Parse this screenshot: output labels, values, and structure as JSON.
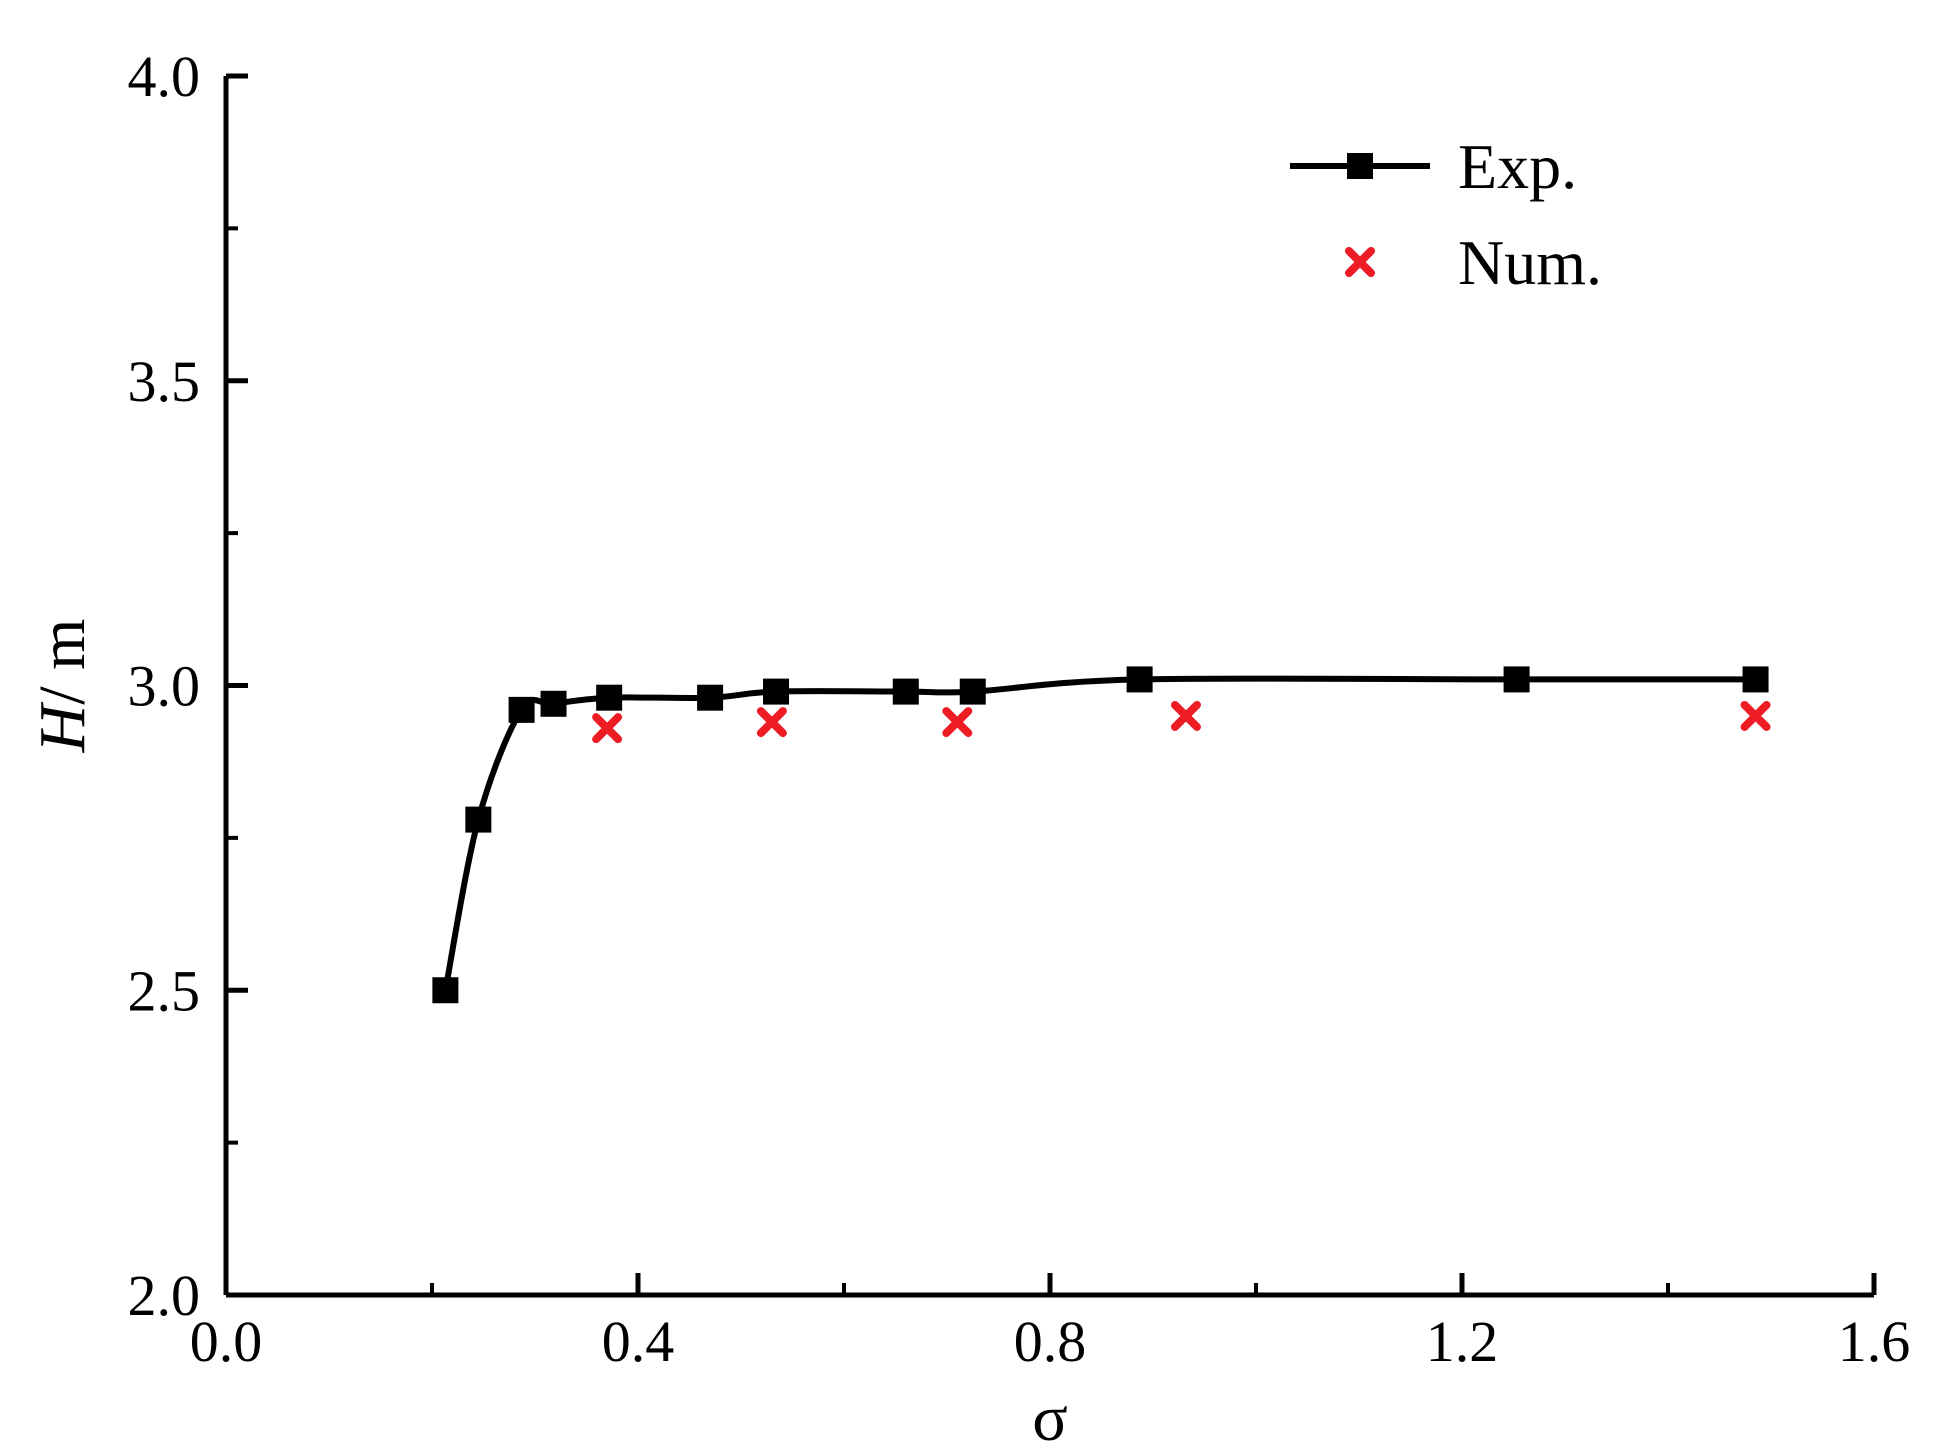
{
  "chart_data": {
    "type": "scatter",
    "title": "",
    "xlabel": "σ",
    "ylabel_italic": "H",
    "ylabel_unit": "/ m",
    "xlim": [
      0.0,
      1.6
    ],
    "ylim": [
      2.0,
      4.0
    ],
    "x_ticks": [
      0.0,
      0.4,
      0.8,
      1.2,
      1.6
    ],
    "x_tick_labels": [
      "0.0",
      "0.4",
      "0.8",
      "1.2",
      "1.6"
    ],
    "y_ticks": [
      2.0,
      2.5,
      3.0,
      3.5,
      4.0
    ],
    "y_tick_labels": [
      "2.0",
      "2.5",
      "3.0",
      "3.5",
      "4.0"
    ],
    "grid": false,
    "legend_position": "top-right",
    "series": [
      {
        "name": "Exp.",
        "style": "line-square",
        "color": "#000000",
        "points": [
          {
            "x": 0.213,
            "y": 2.5
          },
          {
            "x": 0.245,
            "y": 2.78
          },
          {
            "x": 0.287,
            "y": 2.96
          },
          {
            "x": 0.318,
            "y": 2.97
          },
          {
            "x": 0.372,
            "y": 2.98
          },
          {
            "x": 0.47,
            "y": 2.98
          },
          {
            "x": 0.534,
            "y": 2.99
          },
          {
            "x": 0.66,
            "y": 2.99
          },
          {
            "x": 0.725,
            "y": 2.99
          },
          {
            "x": 0.887,
            "y": 3.01
          },
          {
            "x": 1.253,
            "y": 3.01
          },
          {
            "x": 1.485,
            "y": 3.01
          }
        ]
      },
      {
        "name": "Num.",
        "style": "x-marker",
        "color": "#ee1c25",
        "points": [
          {
            "x": 0.37,
            "y": 2.93
          },
          {
            "x": 0.53,
            "y": 2.94
          },
          {
            "x": 0.71,
            "y": 2.94
          },
          {
            "x": 0.932,
            "y": 2.95
          },
          {
            "x": 1.485,
            "y": 2.95
          }
        ]
      }
    ]
  }
}
